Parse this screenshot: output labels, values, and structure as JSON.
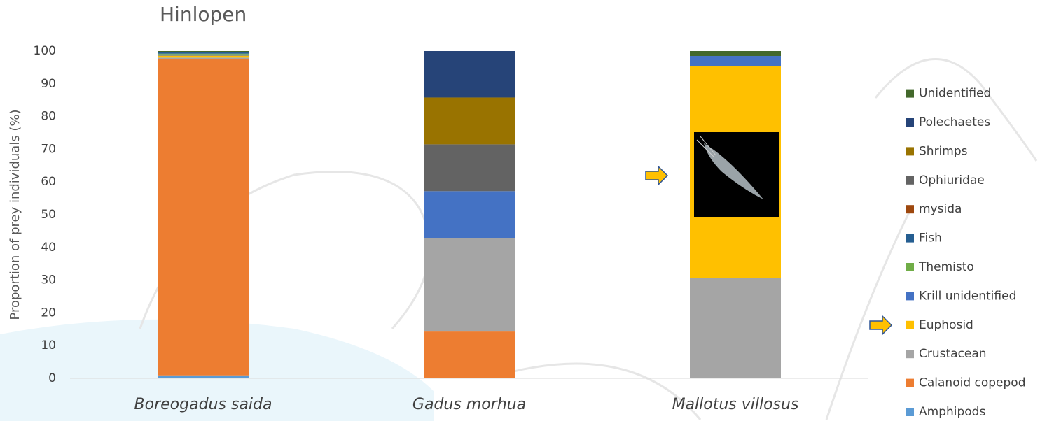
{
  "chart_data": {
    "type": "stacked_bar",
    "title": "Hinlopen",
    "y_label": "Proportion of prey individuals (%)",
    "categories": [
      "Boreogadus saida",
      "Gadus morhua",
      "Mallotus villosus"
    ],
    "ylim": [
      0,
      100
    ],
    "yticks": [
      0,
      10,
      20,
      30,
      40,
      50,
      60,
      70,
      80,
      90,
      100
    ],
    "grid": false,
    "legend": "right",
    "series": [
      {
        "name": "Amphipods",
        "color": "#5b9bd5",
        "values": [
          0.9,
          0,
          0
        ]
      },
      {
        "name": "Calanoid copepod",
        "color": "#ed7d31",
        "values": [
          96.6,
          14.3,
          0
        ]
      },
      {
        "name": "Crustacean",
        "color": "#a5a5a5",
        "values": [
          0.5,
          28.6,
          30.6
        ]
      },
      {
        "name": "Euphosid",
        "color": "#ffc000",
        "values": [
          0.6,
          0,
          64.7
        ]
      },
      {
        "name": "Krill unidentified",
        "color": "#4472c4",
        "values": [
          0.4,
          14.3,
          3.2
        ]
      },
      {
        "name": "Themisto",
        "color": "#70ad47",
        "values": [
          0.2,
          0,
          0
        ]
      },
      {
        "name": "Fish",
        "color": "#255e91",
        "values": [
          0.5,
          0,
          0
        ]
      },
      {
        "name": "mysida",
        "color": "#9e480e",
        "values": [
          0,
          0,
          0
        ]
      },
      {
        "name": "Ophiuridae",
        "color": "#636363",
        "values": [
          0,
          14.3,
          0
        ]
      },
      {
        "name": "Shrimps",
        "color": "#997300",
        "values": [
          0,
          14.3,
          0
        ]
      },
      {
        "name": "Polechaetes",
        "color": "#264478",
        "values": [
          0,
          14.2,
          0
        ]
      },
      {
        "name": "Unidentified",
        "color": "#43682b",
        "values": [
          0.3,
          0,
          1.5
        ]
      }
    ]
  }
}
